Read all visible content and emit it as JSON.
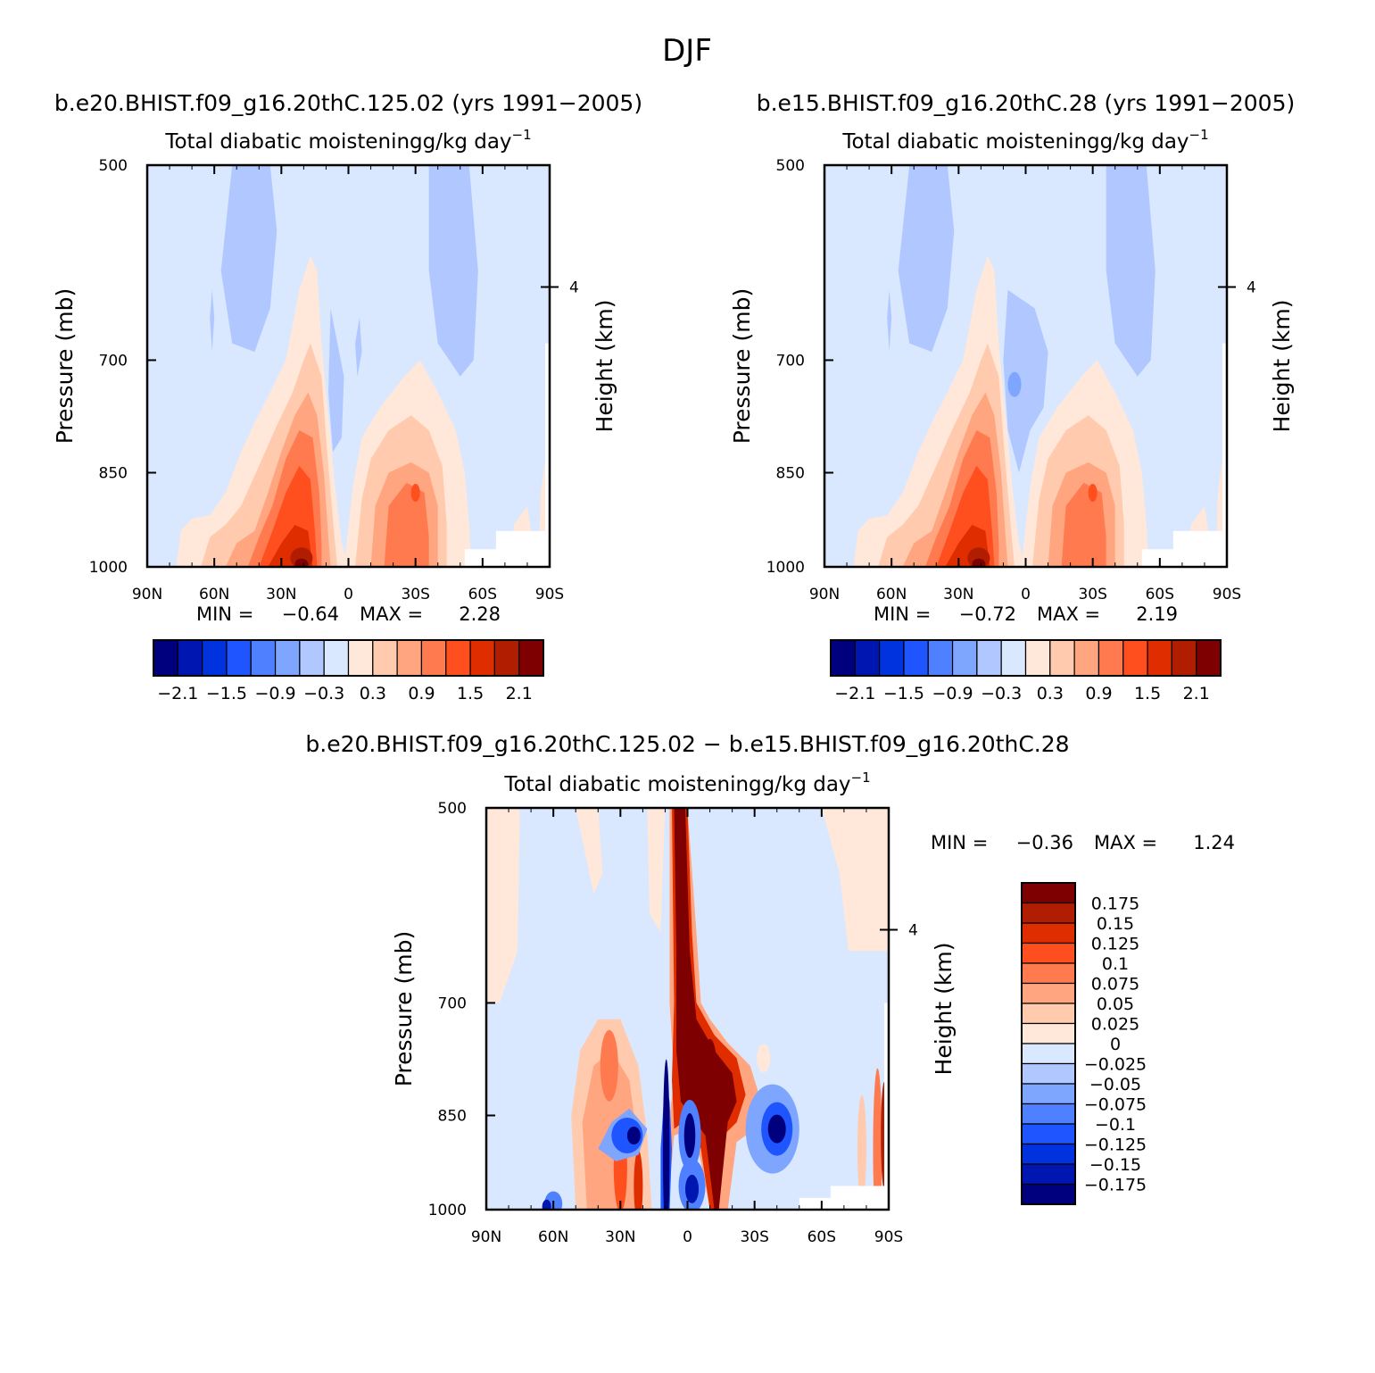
{
  "figure": {
    "title": "DJF"
  },
  "chart_data": [
    {
      "type": "heatmap",
      "id": "left",
      "title": "b.e20.BHIST.f09_g16.20thC.125.02 (yrs 1991−2005)",
      "subtitle": "Total diabatic moistening",
      "units_main": "g/kg day",
      "units_exp": "−1",
      "ylabel": "Pressure (mb)",
      "ylabel_right": "Height (km)",
      "x_ticks": [
        "90N",
        "60N",
        "30N",
        "0",
        "30S",
        "60S",
        "90S"
      ],
      "y_ticks": [
        "500",
        "700",
        "850",
        "1000"
      ],
      "y_right_ticks": [
        "4"
      ],
      "min_label": "MIN =",
      "min_value": "−0.64",
      "max_label": "MAX =",
      "max_value": "2.28",
      "colorbar_labels": [
        "−2.1",
        "−1.5",
        "−0.9",
        "−0.3",
        "0.3",
        "0.9",
        "1.5",
        "2.1"
      ],
      "colorbar_levels": [
        -2.1,
        -1.8,
        -1.5,
        -1.2,
        -0.9,
        -0.6,
        -0.3,
        0,
        0.3,
        0.6,
        0.9,
        1.2,
        1.5,
        1.8,
        2.1
      ],
      "xlim": [
        -90,
        90
      ],
      "ylim": [
        1000,
        500
      ]
    },
    {
      "type": "heatmap",
      "id": "right",
      "title": "b.e15.BHIST.f09_g16.20thC.28 (yrs 1991−2005)",
      "subtitle": "Total diabatic moistening",
      "units_main": "g/kg day",
      "units_exp": "−1",
      "ylabel": "Pressure (mb)",
      "ylabel_right": "Height (km)",
      "x_ticks": [
        "90N",
        "60N",
        "30N",
        "0",
        "30S",
        "60S",
        "90S"
      ],
      "y_ticks": [
        "500",
        "700",
        "850",
        "1000"
      ],
      "y_right_ticks": [
        "4"
      ],
      "min_label": "MIN =",
      "min_value": "−0.72",
      "max_label": "MAX =",
      "max_value": "2.19",
      "colorbar_labels": [
        "−2.1",
        "−1.5",
        "−0.9",
        "−0.3",
        "0.3",
        "0.9",
        "1.5",
        "2.1"
      ],
      "colorbar_levels": [
        -2.1,
        -1.8,
        -1.5,
        -1.2,
        -0.9,
        -0.6,
        -0.3,
        0,
        0.3,
        0.6,
        0.9,
        1.2,
        1.5,
        1.8,
        2.1
      ],
      "xlim": [
        -90,
        90
      ],
      "ylim": [
        1000,
        500
      ]
    },
    {
      "type": "heatmap",
      "id": "diff",
      "title": "b.e20.BHIST.f09_g16.20thC.125.02 − b.e15.BHIST.f09_g16.20thC.28",
      "subtitle": "Total diabatic moistening",
      "units_main": "g/kg day",
      "units_exp": "−1",
      "ylabel": "Pressure (mb)",
      "ylabel_right": "Height (km)",
      "x_ticks": [
        "90N",
        "60N",
        "30N",
        "0",
        "30S",
        "60S",
        "90S"
      ],
      "y_ticks": [
        "500",
        "700",
        "850",
        "1000"
      ],
      "y_right_ticks": [
        "4"
      ],
      "min_label": "MIN =",
      "min_value": "−0.36",
      "max_label": "MAX =",
      "max_value": "1.24",
      "colorbar_labels": [
        "0.175",
        "0.15",
        "0.125",
        "0.1",
        "0.075",
        "0.05",
        "0.025",
        "0",
        "−0.025",
        "−0.05",
        "−0.075",
        "−0.1",
        "−0.125",
        "−0.15",
        "−0.175"
      ],
      "colorbar_levels": [
        -0.175,
        -0.15,
        -0.125,
        -0.1,
        -0.075,
        -0.05,
        -0.025,
        0,
        0.025,
        0.05,
        0.075,
        0.1,
        0.125,
        0.15,
        0.175
      ],
      "xlim": [
        -90,
        90
      ],
      "ylim": [
        1000,
        500
      ]
    }
  ],
  "colors": {
    "scale": [
      "#00007f",
      "#0016b0",
      "#0033dd",
      "#1f55ff",
      "#4f80ff",
      "#7ea6ff",
      "#b0c8ff",
      "#d9e8ff",
      "#ffe8d9",
      "#ffcaad",
      "#ffa57f",
      "#ff7a4f",
      "#ff4f1f",
      "#e02d00",
      "#b01d00",
      "#7f0000"
    ]
  }
}
